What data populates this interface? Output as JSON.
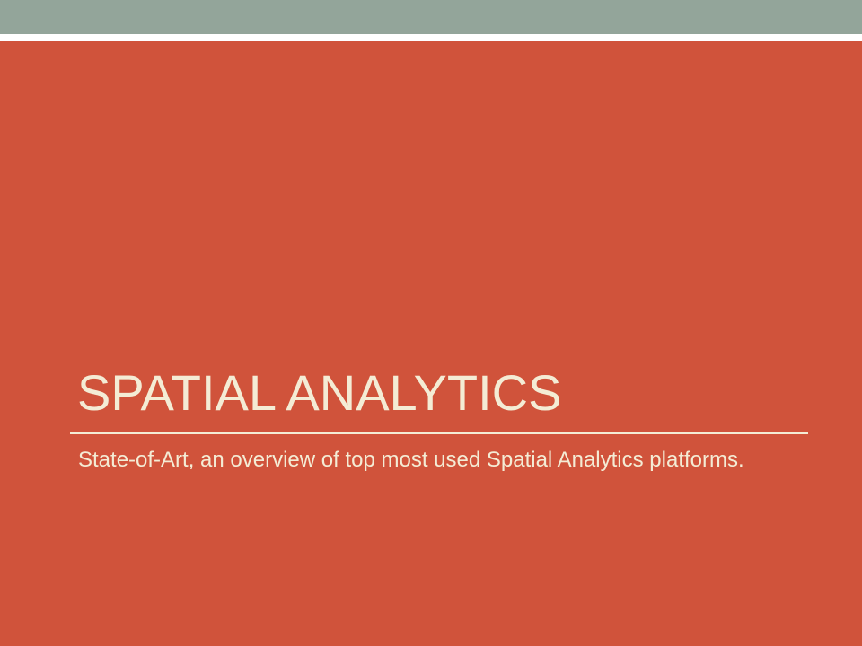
{
  "slide": {
    "title": "SPATIAL ANALYTICS",
    "subtitle": "State-of-Art, an overview of top most used Spatial Analytics platforms."
  },
  "theme": {
    "background": "#d0533b",
    "band": "#93a59a",
    "text": "#f4ecd5"
  }
}
